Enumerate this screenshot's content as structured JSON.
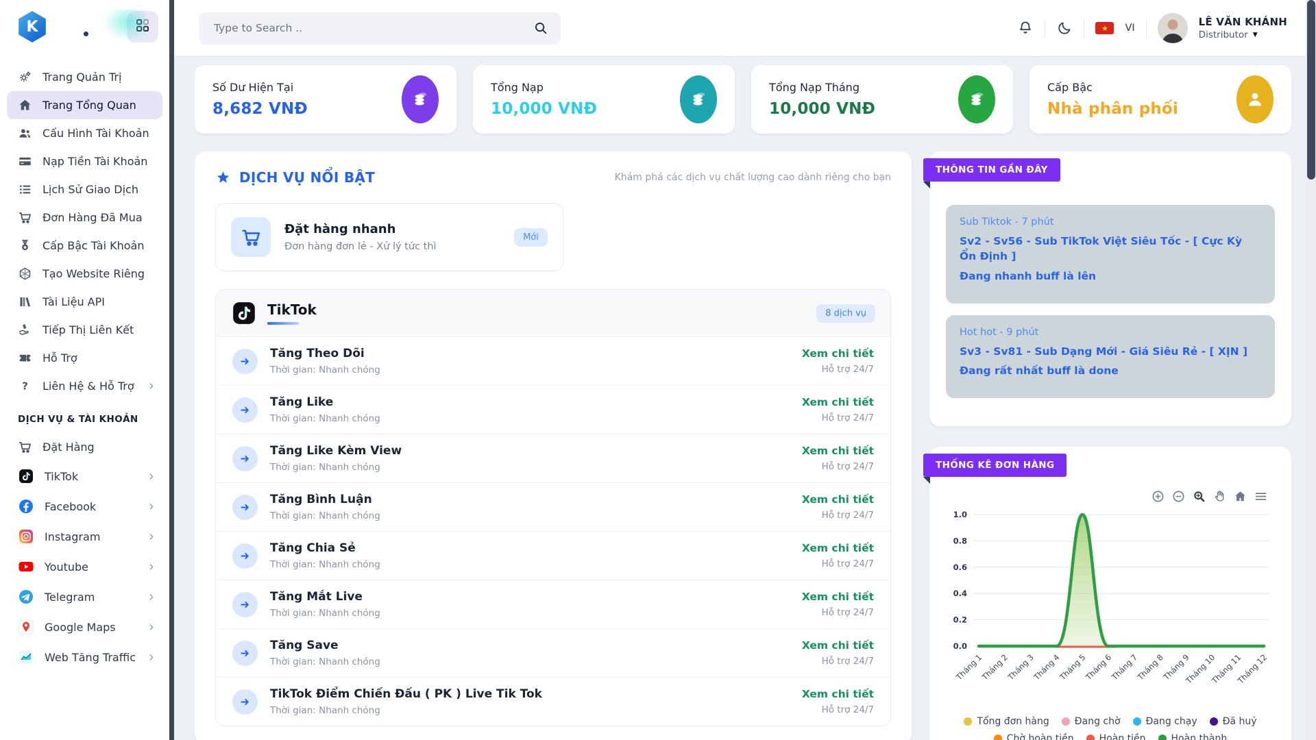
{
  "header": {
    "search_placeholder": "Type to Search ..",
    "language": "VI",
    "user_name": "LÊ VĂN KHÁNH",
    "user_role": "Distributor"
  },
  "sidebar": {
    "logo_letter": "K",
    "main_items": [
      {
        "label": "Trang Quản Trị",
        "icon": "gears"
      },
      {
        "label": "Trang Tổng Quan",
        "icon": "home",
        "active": true
      },
      {
        "label": "Cấu Hình Tài Khoản",
        "icon": "users"
      },
      {
        "label": "Nạp Tiền Tài Khoản",
        "icon": "credit-card"
      },
      {
        "label": "Lịch Sử Giao Dịch",
        "icon": "list"
      },
      {
        "label": "Đơn Hàng Đã Mua",
        "icon": "cart"
      },
      {
        "label": "Cấp Bậc Tài Khoản",
        "icon": "medal"
      },
      {
        "label": "Tạo Website Riêng",
        "icon": "hexagon"
      },
      {
        "label": "Tài Liệu API",
        "icon": "books"
      },
      {
        "label": "Tiếp Thị Liên Kết",
        "icon": "hand-dollar"
      },
      {
        "label": "Hỗ Trợ",
        "icon": "ticket"
      },
      {
        "label": "Liên Hệ & Hỗ Trợ",
        "icon": "question",
        "chevron": true
      }
    ],
    "section_label": "DỊCH VỤ & TÀI KHOẢN",
    "service_items": [
      {
        "label": "Đặt Hàng",
        "icon": "cart"
      },
      {
        "label": "TikTok",
        "icon": "tiktok",
        "brand": true,
        "chevron": true
      },
      {
        "label": "Facebook",
        "icon": "facebook",
        "brand": true,
        "chevron": true
      },
      {
        "label": "Instagram",
        "icon": "instagram",
        "brand": true,
        "chevron": true
      },
      {
        "label": "Youtube",
        "icon": "youtube",
        "brand": true,
        "chevron": true
      },
      {
        "label": "Telegram",
        "icon": "telegram",
        "brand": true,
        "chevron": true
      },
      {
        "label": "Google Maps",
        "icon": "gmaps",
        "brand": true,
        "chevron": true
      },
      {
        "label": "Web Tăng Traffic",
        "icon": "traffic",
        "brand": true,
        "chevron": true
      }
    ]
  },
  "stats": [
    {
      "label": "Số Dư Hiện Tại",
      "value": "8,682 VNĐ",
      "value_color": "#2563eb",
      "icon": "coins",
      "icon_bg": "#7c3eea"
    },
    {
      "label": "Tổng Nạp",
      "value": "10,000 VNĐ",
      "value_color": "#2bd0e8",
      "icon": "coins",
      "icon_bg": "#1da5b0"
    },
    {
      "label": "Tổng Nạp Tháng",
      "value": "10,000 VNĐ",
      "value_color": "#1a7a4a",
      "icon": "coins",
      "icon_bg": "#27a742"
    },
    {
      "label": "Cấp Bậc",
      "value": "Nhà phân phối",
      "value_color": "#f6a71e",
      "icon": "person",
      "icon_bg": "#e6b31e"
    }
  ],
  "featured": {
    "title": "DỊCH VỤ NỔI BẬT",
    "subtitle": "Khám phá các dịch vụ chất lượng cao dành riêng cho bạn",
    "quick": {
      "title": "Đặt hàng nhanh",
      "description": "Đơn hàng đơn lẻ - Xử lý tức thì",
      "badge": "Mới"
    }
  },
  "tiktok": {
    "title": "TikTok",
    "badge": "8 dịch vụ",
    "services": [
      {
        "name": "Tăng Theo Dõi",
        "time": "Thời gian: Nhanh chóng",
        "link": "Xem chi tiết",
        "support": "Hỗ trợ 24/7"
      },
      {
        "name": "Tăng Like",
        "time": "Thời gian: Nhanh chóng",
        "link": "Xem chi tiết",
        "support": "Hỗ trợ 24/7"
      },
      {
        "name": "Tăng Like Kèm View",
        "time": "Thời gian: Nhanh chóng",
        "link": "Xem chi tiết",
        "support": "Hỗ trợ 24/7"
      },
      {
        "name": "Tăng Bình Luận",
        "time": "Thời gian: Nhanh chóng",
        "link": "Xem chi tiết",
        "support": "Hỗ trợ 24/7"
      },
      {
        "name": "Tăng Chia Sẻ",
        "time": "Thời gian: Nhanh chóng",
        "link": "Xem chi tiết",
        "support": "Hỗ trợ 24/7"
      },
      {
        "name": "Tăng Mắt Live",
        "time": "Thời gian: Nhanh chóng",
        "link": "Xem chi tiết",
        "support": "Hỗ trợ 24/7"
      },
      {
        "name": "Tăng Save",
        "time": "Thời gian: Nhanh chóng",
        "link": "Xem chi tiết",
        "support": "Hỗ trợ 24/7"
      },
      {
        "name": "TikTok Điểm Chiến Đấu ( PK ) Live Tik Tok",
        "time": "Thời gian: Nhanh chóng",
        "link": "Xem chi tiết",
        "support": "Hỗ trợ 24/7"
      }
    ]
  },
  "recent": {
    "title": "THÔNG TIN GẦN ĐÂY",
    "items": [
      {
        "tag": "Sub Tiktok - 7 phút",
        "title": "Sv2 - Sv56 - Sub TikTok Việt Siêu Tốc - [ Cực Kỳ Ổn Định ]",
        "status": "Đang nhanh buff là lên"
      },
      {
        "tag": "Hot hot - 9 phút",
        "title": "Sv3 - Sv81 - Sub Dạng Mới - Giá Siêu Rẻ - [ XỊN ]",
        "status": "Đang rất nhất buff là done"
      }
    ]
  },
  "orders": {
    "title": "THỐNG KÊ ĐƠN HÀNG"
  },
  "chart_data": {
    "type": "area",
    "title": "THỐNG KÊ ĐƠN HÀNG",
    "categories": [
      "Tháng 1",
      "Tháng 2",
      "Tháng 3",
      "Tháng 4",
      "Tháng 5",
      "Tháng 6",
      "Tháng 7",
      "Tháng 8",
      "Tháng 9",
      "Tháng 10",
      "Tháng 11",
      "Tháng 12"
    ],
    "series": [
      {
        "name": "Tổng đơn hàng",
        "color": "#e7c23b",
        "values": [
          0,
          0,
          0,
          0,
          1,
          0,
          0,
          0,
          0,
          0,
          0,
          0
        ]
      },
      {
        "name": "Đang chờ",
        "color": "#f3a4ae",
        "values": [
          0,
          0,
          0,
          0,
          0,
          0,
          0,
          0,
          0,
          0,
          0,
          0
        ]
      },
      {
        "name": "Đang chạy",
        "color": "#2bb6f6",
        "values": [
          0,
          0,
          0,
          0,
          0,
          0,
          0,
          0,
          0,
          0,
          0,
          0
        ]
      },
      {
        "name": "Đã huỷ",
        "color": "#49108c",
        "values": [
          0,
          0,
          0,
          0,
          0,
          0,
          0,
          0,
          0,
          0,
          0,
          0
        ]
      },
      {
        "name": "Chờ hoàn tiền",
        "color": "#fb8c00",
        "values": [
          0,
          0,
          0,
          0,
          0,
          0,
          0,
          0,
          0,
          0,
          0,
          0
        ]
      },
      {
        "name": "Hoàn tiền",
        "color": "#ee5a52",
        "values": [
          0,
          0,
          0,
          0,
          0,
          0,
          0,
          0,
          0,
          0,
          0,
          0
        ]
      },
      {
        "name": "Hoàn thành",
        "color": "#2e9e44",
        "values": [
          0,
          0,
          0,
          0,
          1,
          0,
          0,
          0,
          0,
          0,
          0,
          0
        ]
      }
    ],
    "ylim": [
      0,
      1
    ],
    "yticks": [
      1.0,
      0.8,
      0.6,
      0.4,
      0.2,
      0.0
    ],
    "grid": true,
    "legend_position": "bottom"
  }
}
